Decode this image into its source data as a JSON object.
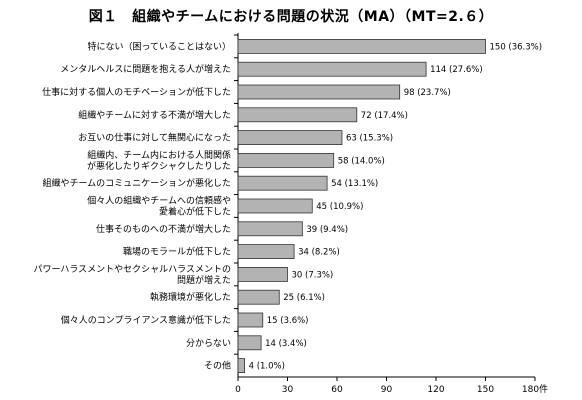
{
  "title": "図１　組織やチームにおける問題の状況（MA）（MT=2.６）",
  "chart_data": {
    "type": "bar",
    "orientation": "horizontal",
    "categories": [
      [
        "特にない（困っていることはない）"
      ],
      [
        "メンタルヘルスに問題を抱える人が増えた"
      ],
      [
        "仕事に対する個人のモチベーションが低下した"
      ],
      [
        "組織やチームに対する不満が増大した"
      ],
      [
        "お互いの仕事に対して無関心になった"
      ],
      [
        "組織内、チーム内における人間関係",
        "が悪化したりギクシャクしたりした"
      ],
      [
        "組織やチームのコミュニケーションが悪化した"
      ],
      [
        "個々人の組織やチームへの信頼感や",
        "愛着心が低下した"
      ],
      [
        "仕事そのものへの不満が増大した"
      ],
      [
        "職場のモラールが低下した"
      ],
      [
        "パワーハラスメントやセクシャルハラスメントの",
        "問題が増えた"
      ],
      [
        "執務環境が悪化した"
      ],
      [
        "個々人のコンプライアンス意識が低下した"
      ],
      [
        "分からない"
      ],
      [
        "その他"
      ]
    ],
    "values": [
      150,
      114,
      98,
      72,
      63,
      58,
      54,
      45,
      39,
      34,
      30,
      25,
      15,
      14,
      4
    ],
    "value_labels": [
      "150 (36.3%)",
      "114 (27.6%)",
      "98 (23.7%)",
      "72 (17.4%)",
      "63 (15.3%)",
      "58 (14.0%)",
      "54 (13.1%)",
      "45 (10.9%)",
      "39 (9.4%)",
      "34 (8.2%)",
      "30 (7.3%)",
      "25 (6.1%)",
      "15 (3.6%)",
      "14 (3.4%)",
      "4 (1.0%)"
    ],
    "xlim": [
      0,
      180
    ],
    "xticks": [
      "0",
      "30",
      "60",
      "90",
      "120",
      "150",
      "180件"
    ],
    "bar_color": "#b3b3b3",
    "bar_edge": "#333333",
    "grid": false
  }
}
